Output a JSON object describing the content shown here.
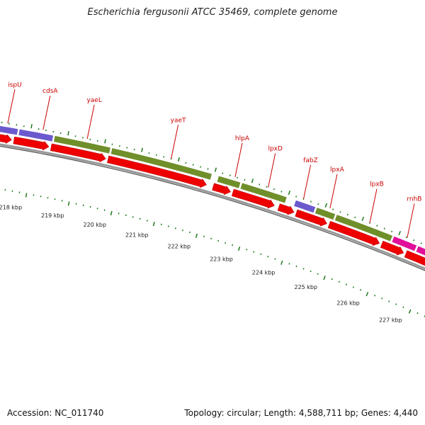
{
  "title": "Escherichia fergusonii ATCC 35469, complete genome",
  "footer": {
    "accession": "Accession: NC_011740",
    "stats": "Topology: circular; Length: 4,588,711 bp; Genes: 4,440"
  },
  "colors": {
    "cds_red": "#ee0000",
    "olive": "#6f8f2a",
    "purple": "#6a5acd",
    "magenta": "#e0109a",
    "backbone": "#777777",
    "tick_green": "#1f7a1f",
    "label_red": "#cc0000"
  },
  "gene_labels": [
    {
      "name": "ispU",
      "pos": 0.03
    },
    {
      "name": "cdsA",
      "pos": 0.11
    },
    {
      "name": "yaeL",
      "pos": 0.21
    },
    {
      "name": "yaeT",
      "pos": 0.4
    },
    {
      "name": "hlpA",
      "pos": 0.545
    },
    {
      "name": "lpxD",
      "pos": 0.62
    },
    {
      "name": "fabZ",
      "pos": 0.7
    },
    {
      "name": "lpxA",
      "pos": 0.76
    },
    {
      "name": "lpxB",
      "pos": 0.85
    },
    {
      "name": "rnhB",
      "pos": 0.935
    }
  ],
  "kbp_ticks": [
    "218 kbp",
    "219 kbp",
    "220 kbp",
    "221 kbp",
    "222 kbp",
    "223 kbp",
    "224 kbp",
    "225 kbp",
    "226 kbp",
    "227 kbp"
  ]
}
